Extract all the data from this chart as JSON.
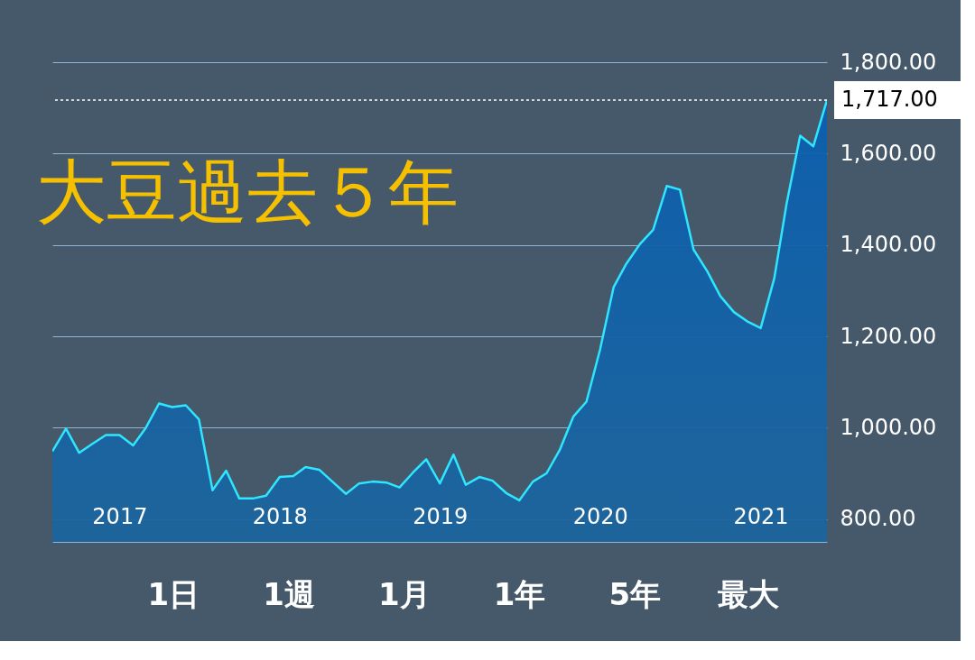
{
  "chart_data": {
    "type": "area",
    "title": "大豆過去５年",
    "x": [
      "2016-08",
      "2016-09",
      "2016-10",
      "2016-11",
      "2016-12",
      "2017-01",
      "2017-02",
      "2017-03",
      "2017-04",
      "2017-05",
      "2017-06",
      "2017-07",
      "2017-08",
      "2017-09",
      "2017-10",
      "2017-11",
      "2017-12",
      "2018-01",
      "2018-02",
      "2018-03",
      "2018-04",
      "2018-05",
      "2018-06",
      "2018-07",
      "2018-08",
      "2018-09",
      "2018-10",
      "2018-11",
      "2018-12",
      "2019-01",
      "2019-02",
      "2019-03",
      "2019-04",
      "2019-05",
      "2019-06",
      "2019-07",
      "2019-08",
      "2019-09",
      "2019-10",
      "2019-11",
      "2019-12",
      "2020-01",
      "2020-02",
      "2020-03",
      "2020-04",
      "2020-05",
      "2020-06",
      "2020-07",
      "2020-08",
      "2020-09",
      "2020-10",
      "2020-11",
      "2020-12",
      "2021-01",
      "2021-02",
      "2021-03",
      "2021-04",
      "2021-05",
      "2021-06"
    ],
    "series": [
      {
        "color": "#2ee6ff",
        "values": [
          948,
          998,
          945,
          965,
          984,
          984,
          961,
          998,
          1053,
          1045,
          1049,
          1018,
          863,
          906,
          845,
          845,
          851,
          892,
          894,
          914,
          908,
          882,
          855,
          878,
          882,
          880,
          869,
          902,
          931,
          878,
          941,
          875,
          892,
          884,
          857,
          841,
          882,
          900,
          951,
          1024,
          1057,
          1171,
          1308,
          1359,
          1402,
          1433,
          1529,
          1521,
          1390,
          1343,
          1288,
          1253,
          1233,
          1218,
          1327,
          1490,
          1639,
          1616,
          1717
        ]
      }
    ],
    "xlim": [
      "2016-08",
      "2021-06"
    ],
    "xticks": [
      "2017",
      "2018",
      "2019",
      "2020",
      "2021"
    ],
    "ylim": [
      750,
      1800
    ],
    "yticks": [
      {
        "value": 800,
        "label": "800.00"
      },
      {
        "value": 1000,
        "label": "1,000.00"
      },
      {
        "value": 1200,
        "label": "1,200.00"
      },
      {
        "value": 1400,
        "label": "1,400.00"
      },
      {
        "value": 1600,
        "label": "1,600.00"
      },
      {
        "value": 1800,
        "label": "1,800.00"
      }
    ],
    "grid": "y",
    "ref_lines": [
      {
        "axis": "y",
        "value": 1717,
        "label": "1,717.00",
        "color": "#ffffff",
        "line_style": "dotted"
      }
    ],
    "annotations": [
      "1日",
      "1週",
      "1月",
      "1年",
      "5年",
      "最大"
    ]
  }
}
